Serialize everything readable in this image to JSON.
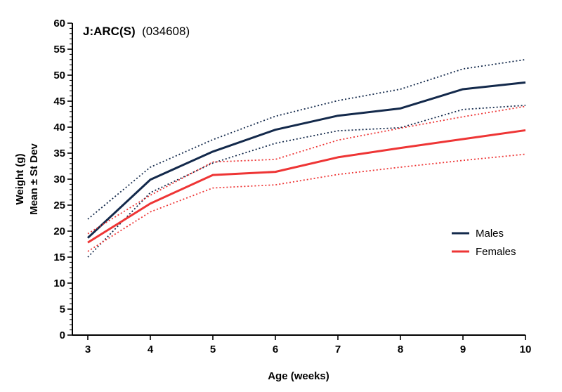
{
  "chart_data": {
    "type": "line",
    "title": "J:ARC(S)",
    "subtitle": "(034608)",
    "xlabel": "Age (weeks)",
    "ylabel": "Weight (g)",
    "ylabel2": "Mean ± St Dev",
    "xlim": [
      3,
      10
    ],
    "ylim": [
      0,
      60
    ],
    "x": [
      3,
      4,
      5,
      6,
      7,
      8,
      9,
      10
    ],
    "x_ticks": [
      "3",
      "4",
      "5",
      "6",
      "7",
      "8",
      "9",
      "10"
    ],
    "y_ticks": [
      "0",
      "5",
      "10",
      "15",
      "20",
      "25",
      "30",
      "35",
      "40",
      "45",
      "50",
      "55",
      "60"
    ],
    "grid": false,
    "legend_position": "right",
    "series": [
      {
        "name": "Males",
        "color": "#13294b",
        "mean": [
          18.7,
          29.9,
          35.3,
          39.5,
          42.2,
          43.6,
          47.3,
          48.6
        ],
        "upper": [
          22.3,
          32.3,
          37.6,
          42.1,
          45.1,
          47.3,
          51.2,
          53.0
        ],
        "lower": [
          15.0,
          27.4,
          33.1,
          36.9,
          39.3,
          39.9,
          43.4,
          44.2
        ]
      },
      {
        "name": "Females",
        "color": "#ee3535",
        "mean": [
          17.8,
          25.3,
          30.8,
          31.4,
          34.2,
          36.0,
          37.7,
          39.4
        ],
        "upper": [
          19.5,
          26.9,
          33.3,
          33.8,
          37.5,
          39.8,
          42.0,
          44.0
        ],
        "lower": [
          16.1,
          23.7,
          28.3,
          28.9,
          30.9,
          32.3,
          33.6,
          34.8
        ]
      }
    ]
  }
}
